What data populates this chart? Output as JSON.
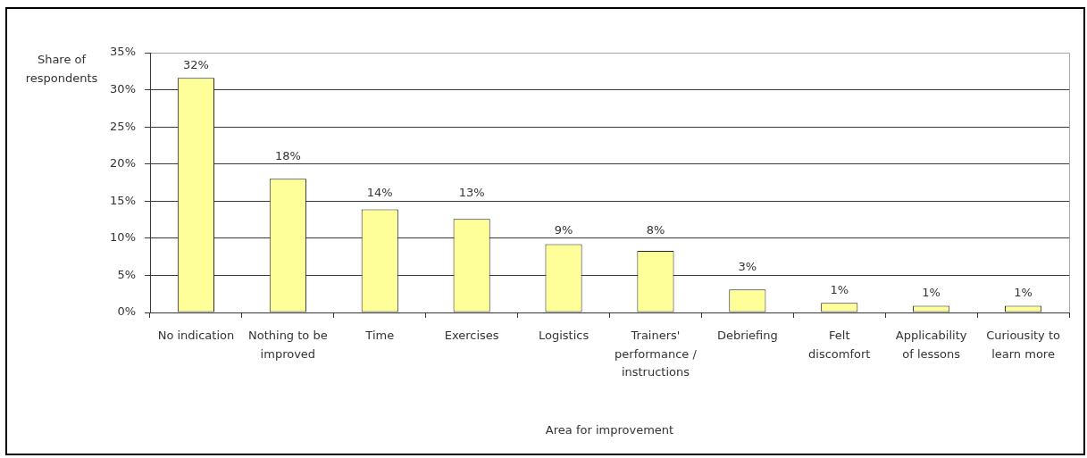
{
  "chart_data": {
    "type": "bar",
    "xlabel": "Area for improvement",
    "ylabel": "Share of respondents",
    "categories": [
      "No indication",
      "Nothing to be improved",
      "Time",
      "Exercises",
      "Logistics",
      "Trainers' performance / instructions",
      "Debriefing",
      "Felt discomfort",
      "Applicability of lessons",
      "Curiousity to learn more"
    ],
    "values": [
      31.6,
      18.0,
      13.9,
      12.6,
      9.2,
      8.3,
      3.1,
      1.3,
      0.9,
      0.9
    ],
    "value_labels": [
      "32%",
      "18%",
      "14%",
      "13%",
      "9%",
      "8%",
      "3%",
      "1%",
      "1%",
      "1%"
    ],
    "color": "#ffff99",
    "ylim": [
      0,
      35
    ],
    "yticks": [
      {
        "value": 0,
        "label": "0%"
      },
      {
        "value": 5,
        "label": "5%"
      },
      {
        "value": 10,
        "label": "10%"
      },
      {
        "value": 15,
        "label": "15%"
      },
      {
        "value": 20,
        "label": "20%"
      },
      {
        "value": 25,
        "label": "25%"
      },
      {
        "value": 30,
        "label": "30%"
      },
      {
        "value": 35,
        "label": "35%"
      }
    ],
    "grid": "y"
  }
}
